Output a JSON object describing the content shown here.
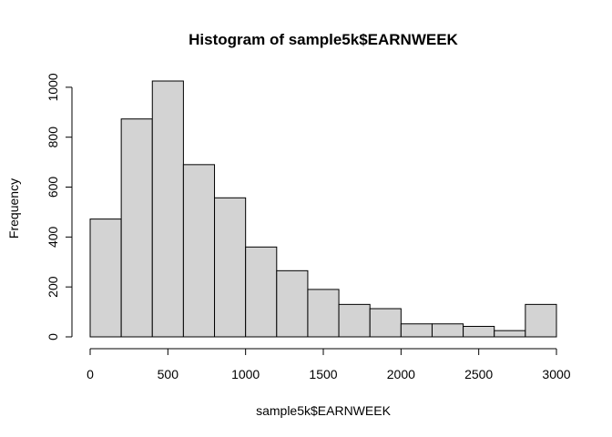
{
  "chart_data": {
    "type": "bar",
    "title": "Histogram of sample5k$EARNWEEK",
    "xlabel": "sample5k$EARNWEEK",
    "ylabel": "Frequency",
    "bin_edges": [
      0,
      200,
      400,
      600,
      800,
      1000,
      1200,
      1400,
      1600,
      1800,
      2000,
      2200,
      2400,
      2600,
      2800,
      3000
    ],
    "values": [
      472,
      873,
      1025,
      690,
      557,
      360,
      265,
      190,
      130,
      113,
      52,
      52,
      42,
      25,
      130
    ],
    "xlim": [
      0,
      3000
    ],
    "ylim": [
      0,
      1025
    ],
    "x_ticks": [
      0,
      500,
      1000,
      1500,
      2000,
      2500,
      3000
    ],
    "y_ticks": [
      0,
      200,
      400,
      600,
      800,
      1000
    ],
    "colors": {
      "bar_fill": "#d3d3d3",
      "bar_stroke": "#000000"
    },
    "grid": false,
    "legend": "none"
  }
}
